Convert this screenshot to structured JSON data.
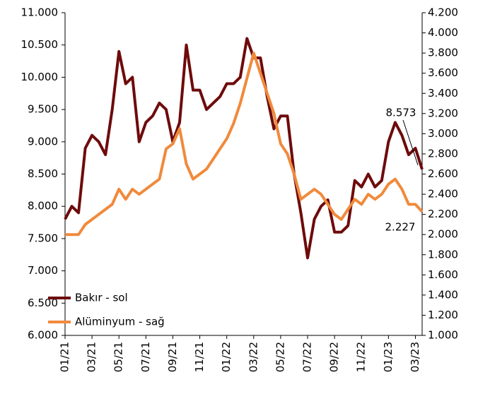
{
  "chart_data": {
    "type": "line",
    "x": [
      "01/21",
      null,
      null,
      null,
      "03/21",
      null,
      null,
      null,
      "05/21",
      null,
      null,
      null,
      "07/21",
      null,
      null,
      null,
      "09/21",
      null,
      null,
      null,
      "11/21",
      null,
      null,
      null,
      "01/22",
      null,
      null,
      null,
      "03/22",
      null,
      null,
      null,
      "05/22",
      null,
      null,
      null,
      "07/22",
      null,
      null,
      null,
      "09/22",
      null,
      null,
      null,
      "11/22",
      null,
      null,
      null,
      "01/23",
      null,
      null,
      null,
      "03/23",
      null
    ],
    "series": [
      {
        "name": "Bakır - sol",
        "color": "#6e0b0b",
        "axis": "y",
        "values": [
          7800,
          8000,
          7900,
          8900,
          9100,
          9000,
          8800,
          9500,
          10400,
          9900,
          10000,
          9000,
          9300,
          9400,
          9600,
          9500,
          9000,
          9300,
          10500,
          9800,
          9800,
          9500,
          9600,
          9700,
          9900,
          9900,
          10000,
          10600,
          10300,
          10300,
          9700,
          9200,
          9400,
          9400,
          8500,
          7900,
          7200,
          7800,
          8000,
          8100,
          7600,
          7600,
          7700,
          8400,
          8300,
          8500,
          8300,
          8400,
          9000,
          9300,
          9100,
          8800,
          8900,
          8573
        ]
      },
      {
        "name": "Alüminyum - sağ",
        "color": "#f08a3c",
        "axis": "y2",
        "values": [
          2000,
          2000,
          2000,
          2100,
          2150,
          2200,
          2250,
          2300,
          2450,
          2350,
          2450,
          2400,
          2450,
          2500,
          2550,
          2850,
          2900,
          3050,
          2700,
          2550,
          2600,
          2650,
          2750,
          2850,
          2950,
          3100,
          3300,
          3550,
          3800,
          3600,
          3400,
          3200,
          2900,
          2800,
          2600,
          2350,
          2400,
          2450,
          2400,
          2300,
          2200,
          2150,
          2250,
          2350,
          2300,
          2400,
          2350,
          2400,
          2500,
          2550,
          2450,
          2300,
          2300,
          2227
        ]
      }
    ],
    "annotations": [
      "8.573",
      "2.227"
    ],
    "ylim": [
      6000,
      11000
    ],
    "yticks": [
      {
        "value": 6000,
        "label": "6.000"
      },
      {
        "value": 6500,
        "label": "6.500"
      },
      {
        "value": 7000,
        "label": "7.000"
      },
      {
        "value": 7500,
        "label": "7.500"
      },
      {
        "value": 8000,
        "label": "8.000"
      },
      {
        "value": 8500,
        "label": "8.500"
      },
      {
        "value": 9000,
        "label": "9.000"
      },
      {
        "value": 9500,
        "label": "9.500"
      },
      {
        "value": 10000,
        "label": "10.000"
      },
      {
        "value": 10500,
        "label": "10.500"
      },
      {
        "value": 11000,
        "label": "11.000"
      }
    ],
    "y2lim": [
      1000,
      4200
    ],
    "y2ticks": [
      {
        "value": 1000,
        "label": "1.000"
      },
      {
        "value": 1200,
        "label": "1.200"
      },
      {
        "value": 1400,
        "label": "1.400"
      },
      {
        "value": 1600,
        "label": "1.600"
      },
      {
        "value": 1800,
        "label": "1.800"
      },
      {
        "value": 2000,
        "label": "2.000"
      },
      {
        "value": 2200,
        "label": "2.200"
      },
      {
        "value": 2400,
        "label": "2.400"
      },
      {
        "value": 2600,
        "label": "2.600"
      },
      {
        "value": 2800,
        "label": "2.800"
      },
      {
        "value": 3000,
        "label": "3.000"
      },
      {
        "value": 3200,
        "label": "3.200"
      },
      {
        "value": 3400,
        "label": "3.400"
      },
      {
        "value": 3600,
        "label": "3.600"
      },
      {
        "value": 3800,
        "label": "3.800"
      },
      {
        "value": 4000,
        "label": "4.000"
      },
      {
        "value": 4200,
        "label": "4.200"
      }
    ],
    "grid": false,
    "legend": "lower left"
  }
}
